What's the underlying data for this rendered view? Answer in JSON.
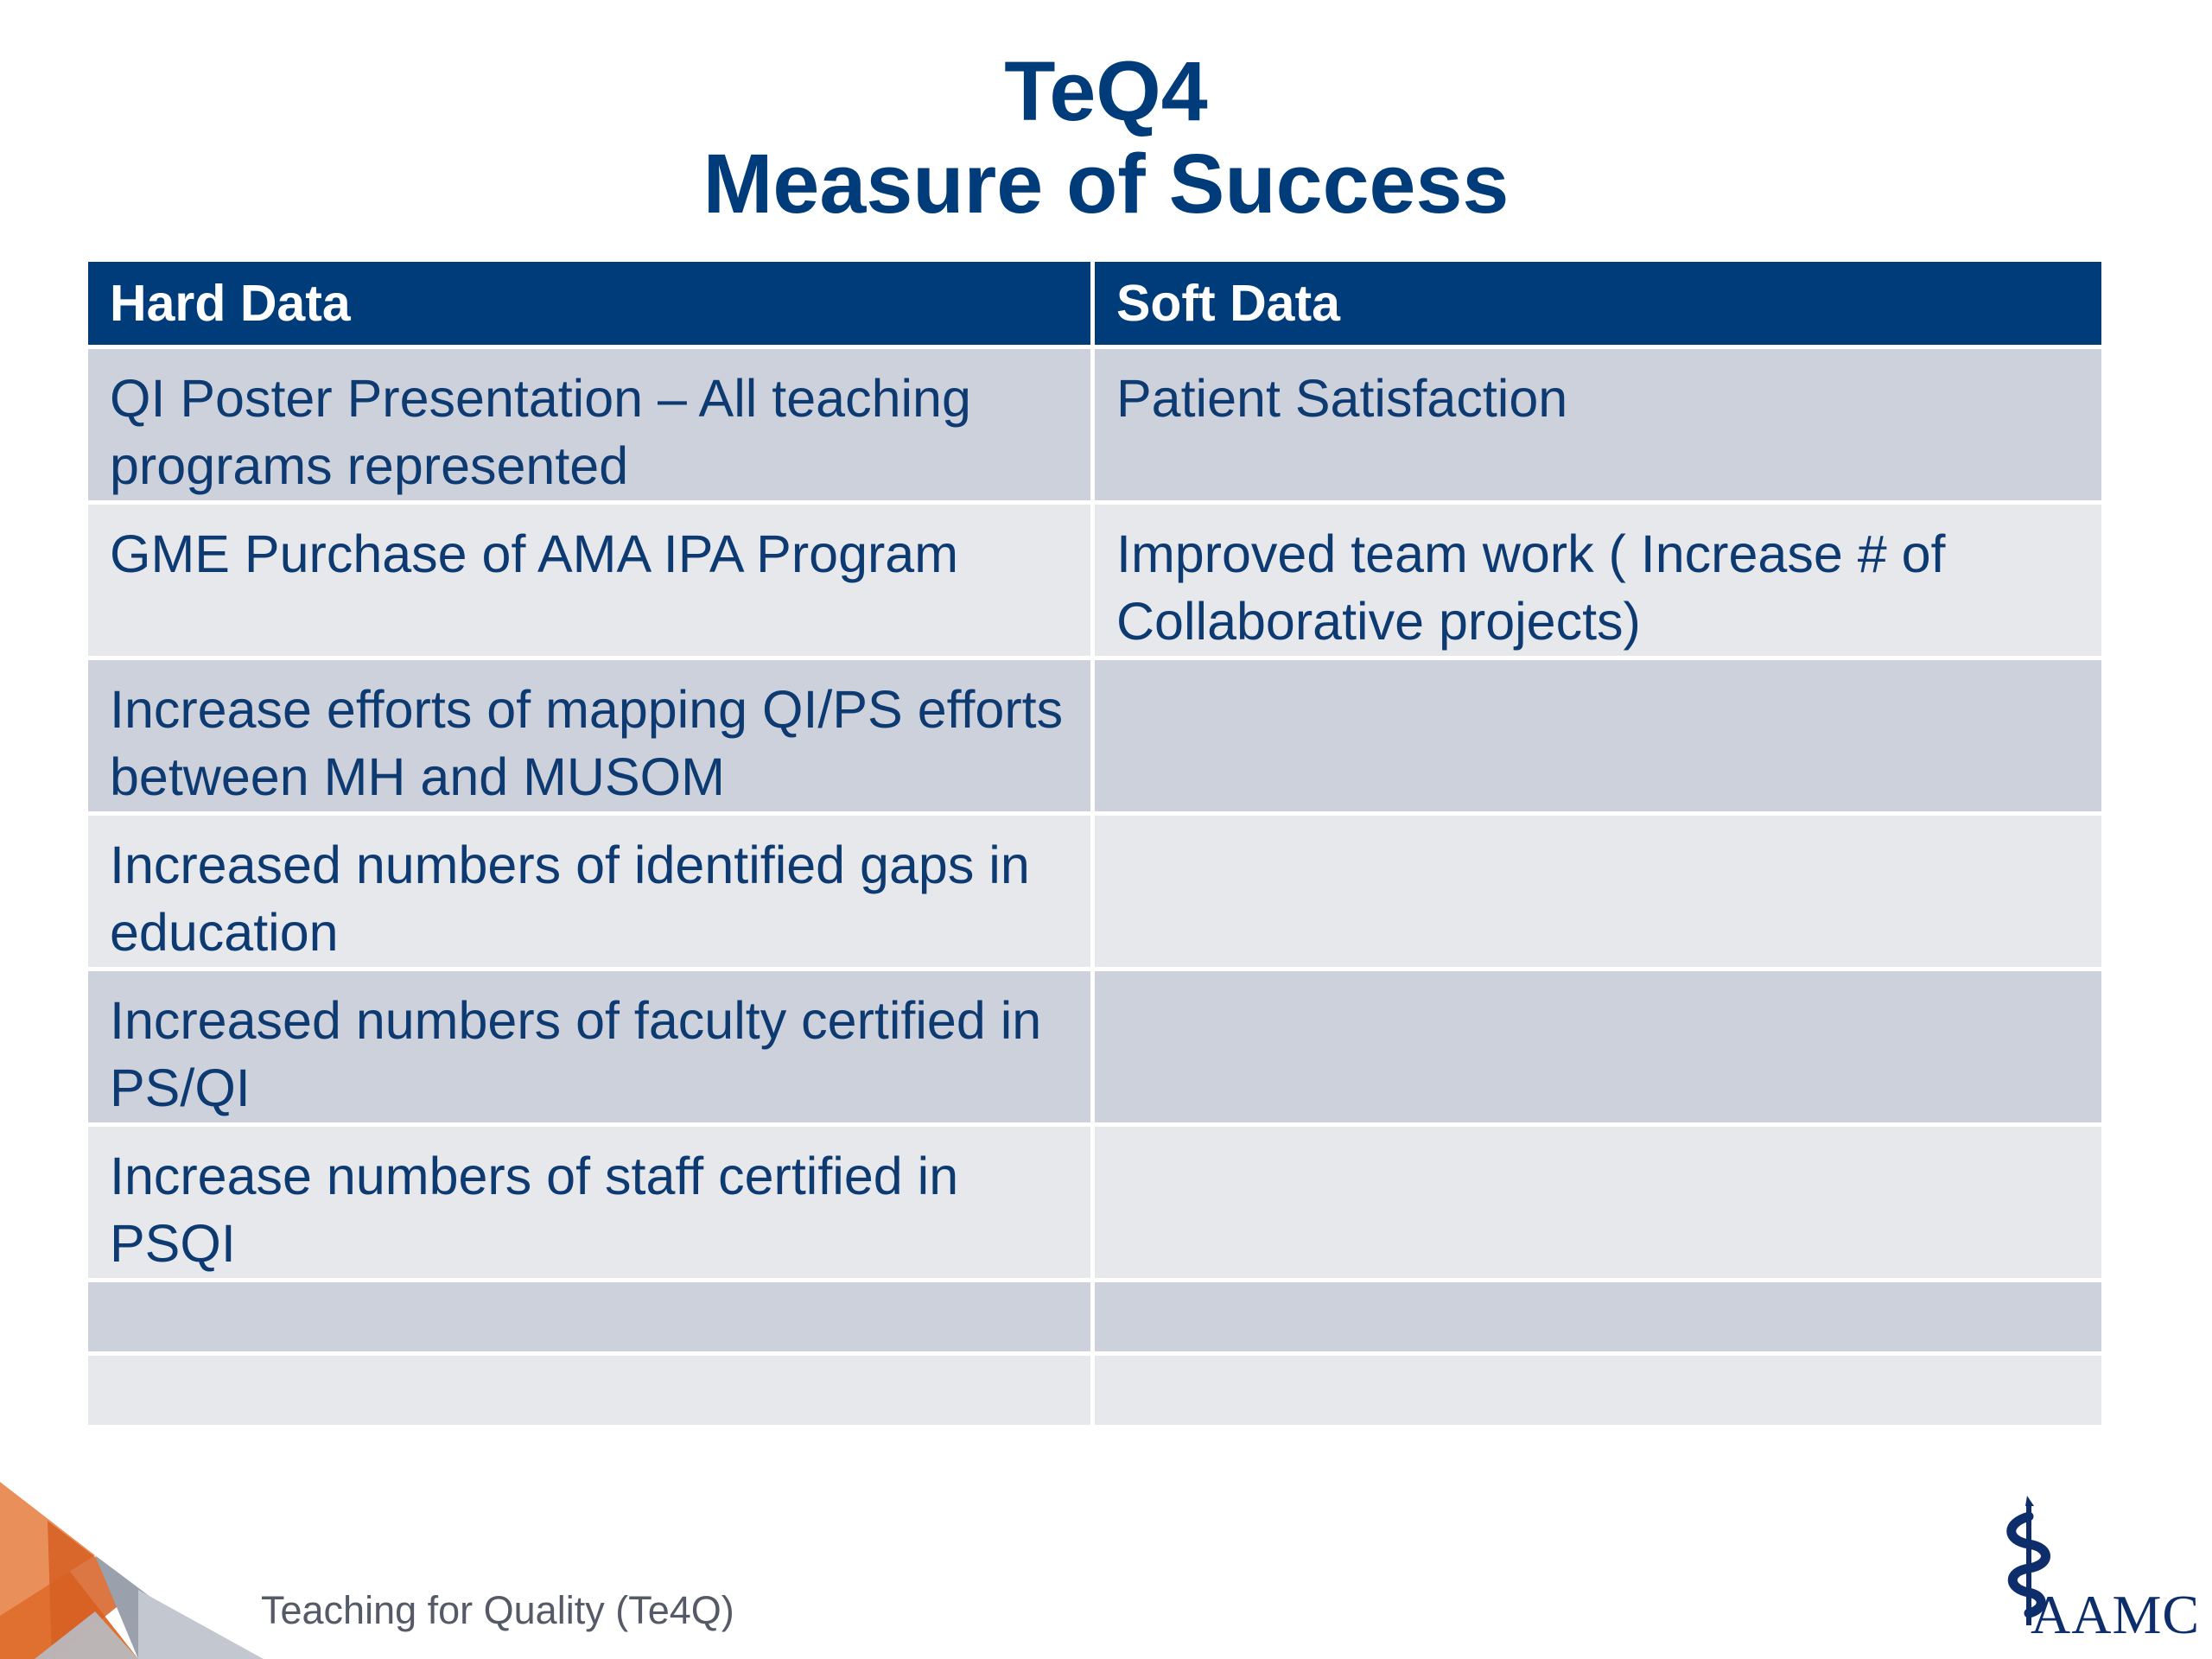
{
  "title": {
    "line1": "TeQ4",
    "line2": "Measure of Success"
  },
  "table": {
    "headers": [
      "Hard Data",
      "Soft Data"
    ],
    "rows": [
      [
        "QI Poster Presentation – All teaching programs represented",
        "Patient  Satisfaction"
      ],
      [
        "GME Purchase of AMA IPA Program",
        "Improved team work ( Increase # of Collaborative projects)"
      ],
      [
        "Increase efforts of mapping QI/PS efforts between MH and MUSOM",
        ""
      ],
      [
        "Increased numbers of identified gaps in education",
        ""
      ],
      [
        "Increased numbers of faculty certified in PS/QI",
        ""
      ],
      [
        "Increase numbers of staff certified in PSQI",
        ""
      ],
      [
        "",
        ""
      ],
      [
        "",
        ""
      ]
    ]
  },
  "footer": {
    "text": "Teaching for Quality (Te4Q)",
    "logo_text": "AAMC"
  },
  "colors": {
    "title": "#003b7a",
    "header_bg": "#003b7a",
    "row_dark": "#cdd1db",
    "row_light": "#e7e8ec",
    "accent_orange": "#e0702f"
  }
}
